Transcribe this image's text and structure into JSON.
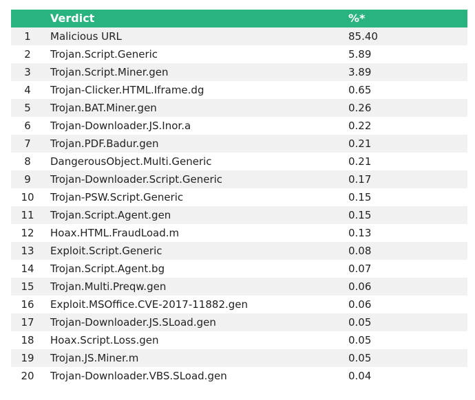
{
  "table": {
    "header": [
      "Verdict",
      "%*"
    ],
    "rows": [
      [
        "1",
        "Malicious URL",
        "85.40"
      ],
      [
        "2",
        "Trojan.Script.Generic",
        "5.89"
      ],
      [
        "3",
        "Trojan.Script.Miner.gen",
        "3.89"
      ],
      [
        "4",
        "Trojan-Clicker.HTML.Iframe.dg",
        "0.65"
      ],
      [
        "5",
        "Trojan.BAT.Miner.gen",
        "0.26"
      ],
      [
        "6",
        "Trojan-Downloader.JS.Inor.a",
        "0.22"
      ],
      [
        "7",
        "Trojan.PDF.Badur.gen",
        "0.21"
      ],
      [
        "8",
        "DangerousObject.Multi.Generic",
        "0.21"
      ],
      [
        "9",
        "Trojan-Downloader.Script.Generic",
        "0.17"
      ],
      [
        "10",
        "Trojan-PSW.Script.Generic",
        "0.15"
      ],
      [
        "11",
        "Trojan.Script.Agent.gen",
        "0.15"
      ],
      [
        "12",
        "Hoax.HTML.FraudLoad.m",
        "0.13"
      ],
      [
        "13",
        "Exploit.Script.Generic",
        "0.08"
      ],
      [
        "14",
        "Trojan.Script.Agent.bg",
        "0.07"
      ],
      [
        "15",
        "Trojan.Multi.Preqw.gen",
        "0.06"
      ],
      [
        "16",
        "Exploit.MSOffice.CVE-2017-11882.gen",
        "0.06"
      ],
      [
        "17",
        "Trojan-Downloader.JS.SLoad.gen",
        "0.05"
      ],
      [
        "18",
        "Hoax.Script.Loss.gen",
        "0.05"
      ],
      [
        "19",
        "Trojan.JS.Miner.m",
        "0.05"
      ],
      [
        "20",
        "Trojan-Downloader.VBS.SLoad.gen",
        "0.04"
      ]
    ]
  }
}
